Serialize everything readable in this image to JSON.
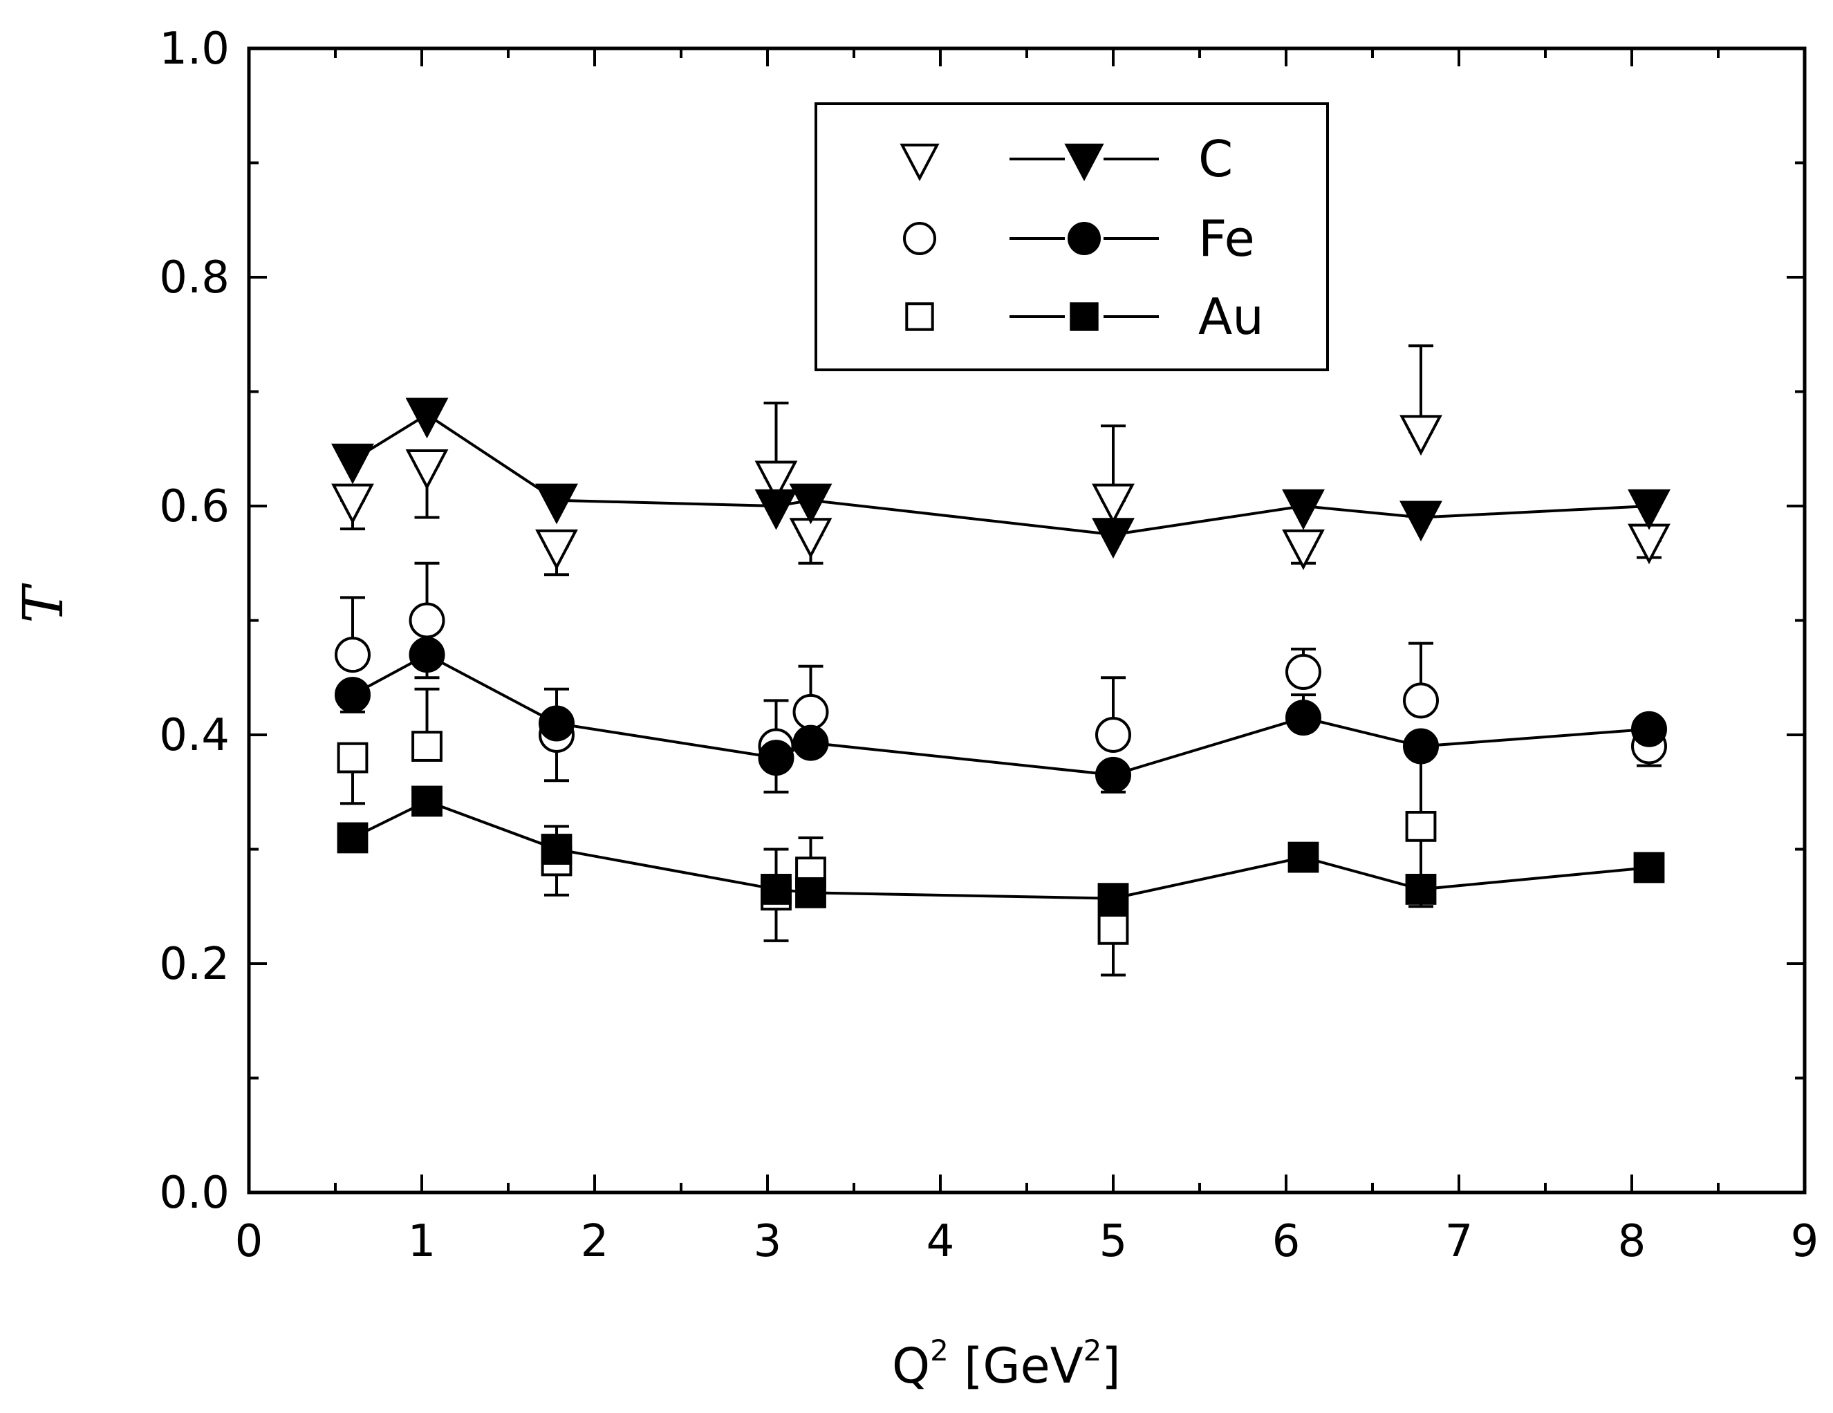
{
  "chart_data": {
    "type": "scatter",
    "title": "",
    "xlabel": {
      "main": "Q",
      "sup": "2",
      "unit_prefix": " [GeV",
      "unit_sup": "2",
      "unit_suffix": "]"
    },
    "ylabel": "T",
    "xlim": [
      0,
      9
    ],
    "ylim": [
      0.0,
      1.0
    ],
    "xticks": [
      "0",
      "1",
      "2",
      "3",
      "4",
      "5",
      "6",
      "7",
      "8",
      "9"
    ],
    "yticks": [
      "0.0",
      "0.2",
      "0.4",
      "0.6",
      "0.8",
      "1.0"
    ],
    "legend": {
      "placement": "top-center",
      "entries": [
        {
          "label": "C",
          "marker": "triangle-down"
        },
        {
          "label": "Fe",
          "marker": "circle"
        },
        {
          "label": "Au",
          "marker": "square"
        }
      ]
    },
    "series": [
      {
        "name": "C",
        "style": "open",
        "marker": "triangle-down",
        "points": [
          {
            "x": 0.6,
            "y": 0.605,
            "err": [
              0.58,
              0.605
            ]
          },
          {
            "x": 1.03,
            "y": 0.635,
            "err": [
              0.59,
              0.635
            ]
          },
          {
            "x": 1.78,
            "y": 0.565,
            "err": [
              0.54,
              0.565
            ]
          },
          {
            "x": 3.05,
            "y": 0.625,
            "err": [
              0.625,
              0.69
            ]
          },
          {
            "x": 3.25,
            "y": 0.575,
            "err": [
              0.55,
              0.575
            ]
          },
          {
            "x": 5.0,
            "y": 0.605,
            "err": [
              0.605,
              0.67
            ]
          },
          {
            "x": 6.1,
            "y": 0.565,
            "err": [
              0.55,
              0.565
            ]
          },
          {
            "x": 6.78,
            "y": 0.665,
            "err": [
              0.665,
              0.74
            ]
          },
          {
            "x": 8.1,
            "y": 0.57,
            "err": [
              0.555,
              0.57
            ]
          }
        ]
      },
      {
        "name": "C",
        "style": "filled",
        "marker": "triangle-down",
        "points": [
          {
            "x": 0.6,
            "y": 0.64
          },
          {
            "x": 1.03,
            "y": 0.68
          },
          {
            "x": 1.78,
            "y": 0.605
          },
          {
            "x": 3.05,
            "y": 0.6
          },
          {
            "x": 3.25,
            "y": 0.605
          },
          {
            "x": 5.0,
            "y": 0.575
          },
          {
            "x": 6.1,
            "y": 0.6
          },
          {
            "x": 6.78,
            "y": 0.59
          },
          {
            "x": 8.1,
            "y": 0.6
          }
        ]
      },
      {
        "name": "Fe",
        "style": "open",
        "marker": "circle",
        "points": [
          {
            "x": 0.6,
            "y": 0.47,
            "err": [
              0.47,
              0.52
            ]
          },
          {
            "x": 1.03,
            "y": 0.5,
            "err": [
              0.5,
              0.55
            ]
          },
          {
            "x": 1.78,
            "y": 0.4,
            "err": [
              0.36,
              0.44
            ]
          },
          {
            "x": 3.05,
            "y": 0.39,
            "err": [
              0.35,
              0.43
            ]
          },
          {
            "x": 3.25,
            "y": 0.42,
            "err": [
              0.42,
              0.46
            ]
          },
          {
            "x": 5.0,
            "y": 0.4,
            "err": [
              0.4,
              0.45
            ]
          },
          {
            "x": 6.1,
            "y": 0.455,
            "err": [
              0.455,
              0.475
            ]
          },
          {
            "x": 6.78,
            "y": 0.43,
            "err": [
              0.43,
              0.48
            ]
          },
          {
            "x": 8.1,
            "y": 0.39,
            "err": [
              0.373,
              0.39
            ]
          }
        ]
      },
      {
        "name": "Fe",
        "style": "filled",
        "marker": "circle",
        "points": [
          {
            "x": 0.6,
            "y": 0.435,
            "err": [
              0.42,
              0.435
            ]
          },
          {
            "x": 1.03,
            "y": 0.47,
            "err": [
              0.45,
              0.47
            ]
          },
          {
            "x": 1.78,
            "y": 0.41
          },
          {
            "x": 3.05,
            "y": 0.38
          },
          {
            "x": 3.25,
            "y": 0.393
          },
          {
            "x": 5.0,
            "y": 0.365,
            "err": [
              0.35,
              0.365
            ]
          },
          {
            "x": 6.1,
            "y": 0.415,
            "err": [
              0.415,
              0.435
            ]
          },
          {
            "x": 6.78,
            "y": 0.39
          },
          {
            "x": 8.1,
            "y": 0.405
          }
        ]
      },
      {
        "name": "Au",
        "style": "open",
        "marker": "square",
        "points": [
          {
            "x": 0.6,
            "y": 0.38,
            "err": [
              0.34,
              0.38
            ]
          },
          {
            "x": 1.03,
            "y": 0.39,
            "err": [
              0.39,
              0.44
            ]
          },
          {
            "x": 1.78,
            "y": 0.29,
            "err": [
              0.26,
              0.29
            ]
          },
          {
            "x": 3.05,
            "y": 0.26,
            "err": [
              0.22,
              0.3
            ]
          },
          {
            "x": 3.25,
            "y": 0.28,
            "err": [
              0.28,
              0.31
            ]
          },
          {
            "x": 5.0,
            "y": 0.23,
            "err": [
              0.19,
              0.23
            ]
          },
          {
            "x": 6.78,
            "y": 0.32,
            "err": [
              0.25,
              0.39
            ]
          }
        ]
      },
      {
        "name": "Au",
        "style": "filled",
        "marker": "square",
        "points": [
          {
            "x": 0.6,
            "y": 0.31
          },
          {
            "x": 1.03,
            "y": 0.342
          },
          {
            "x": 1.78,
            "y": 0.3,
            "err": [
              0.3,
              0.32
            ]
          },
          {
            "x": 3.05,
            "y": 0.265
          },
          {
            "x": 3.25,
            "y": 0.262
          },
          {
            "x": 5.0,
            "y": 0.257
          },
          {
            "x": 6.1,
            "y": 0.293
          },
          {
            "x": 6.78,
            "y": 0.265
          },
          {
            "x": 8.1,
            "y": 0.284
          }
        ]
      }
    ]
  }
}
